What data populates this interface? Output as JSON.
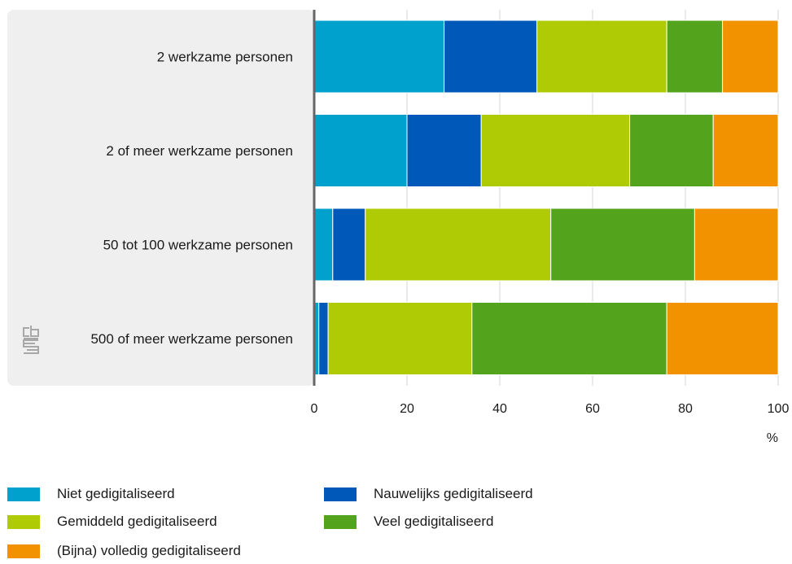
{
  "chart_data": {
    "type": "bar",
    "orientation": "horizontal",
    "stacked": true,
    "categories": [
      "2 werkzame personen",
      "2 of meer werkzame personen",
      "50 tot 100 werkzame personen",
      "500 of meer werkzame personen"
    ],
    "series": [
      {
        "name": "Niet gedigitaliseerd",
        "color": "#00a1cd",
        "values": [
          28,
          20,
          4,
          1
        ]
      },
      {
        "name": "Nauwelijks gedigitaliseerd",
        "color": "#0058b8",
        "values": [
          20,
          16,
          7,
          2
        ]
      },
      {
        "name": "Gemiddeld gedigitaliseerd",
        "color": "#afcb05",
        "values": [
          28,
          32,
          40,
          31
        ]
      },
      {
        "name": "Veel gedigitaliseerd",
        "color": "#53a31d",
        "values": [
          12,
          18,
          31,
          42
        ]
      },
      {
        "name": "(Bijna) volledig gedigitaliseerd",
        "color": "#f39200",
        "values": [
          12,
          14,
          18,
          24
        ]
      }
    ],
    "xlim": [
      0,
      100
    ],
    "xticks": [
      0,
      20,
      40,
      60,
      80,
      100
    ],
    "xunit": "%",
    "grid": true,
    "legend_position": "bottom"
  },
  "logo": {
    "name": "cbs-logo-icon",
    "text": "cbs"
  }
}
